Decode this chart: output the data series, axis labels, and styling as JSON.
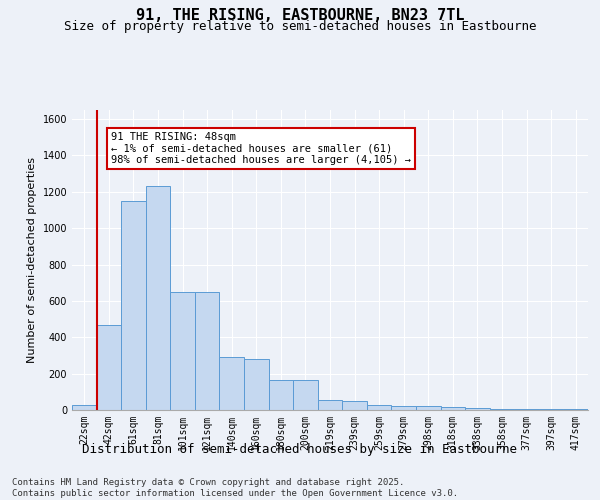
{
  "title": "91, THE RISING, EASTBOURNE, BN23 7TL",
  "subtitle": "Size of property relative to semi-detached houses in Eastbourne",
  "xlabel": "Distribution of semi-detached houses by size in Eastbourne",
  "ylabel": "Number of semi-detached properties",
  "footer_line1": "Contains HM Land Registry data © Crown copyright and database right 2025.",
  "footer_line2": "Contains public sector information licensed under the Open Government Licence v3.0.",
  "annotation_title": "91 THE RISING: 48sqm",
  "annotation_line1": "← 1% of semi-detached houses are smaller (61)",
  "annotation_line2": "98% of semi-detached houses are larger (4,105) →",
  "bar_labels": [
    "22sqm",
    "42sqm",
    "61sqm",
    "81sqm",
    "101sqm",
    "121sqm",
    "140sqm",
    "160sqm",
    "180sqm",
    "200sqm",
    "219sqm",
    "239sqm",
    "259sqm",
    "279sqm",
    "298sqm",
    "318sqm",
    "338sqm",
    "358sqm",
    "377sqm",
    "397sqm",
    "417sqm"
  ],
  "bar_values": [
    30,
    470,
    1150,
    1230,
    650,
    650,
    290,
    280,
    165,
    165,
    55,
    50,
    30,
    20,
    20,
    15,
    10,
    5,
    5,
    5,
    5
  ],
  "bar_color": "#c5d8f0",
  "bar_edge_color": "#5b9bd5",
  "redline_x": 0.5,
  "ylim": [
    0,
    1650
  ],
  "yticks": [
    0,
    200,
    400,
    600,
    800,
    1000,
    1200,
    1400,
    1600
  ],
  "background_color": "#edf1f8",
  "grid_color": "#ffffff",
  "annotation_box_color": "#ffffff",
  "annotation_box_edge": "#cc0000",
  "redline_color": "#cc0000",
  "title_fontsize": 11,
  "subtitle_fontsize": 9,
  "axis_label_fontsize": 8,
  "tick_fontsize": 7,
  "annotation_fontsize": 7.5,
  "footer_fontsize": 6.5
}
